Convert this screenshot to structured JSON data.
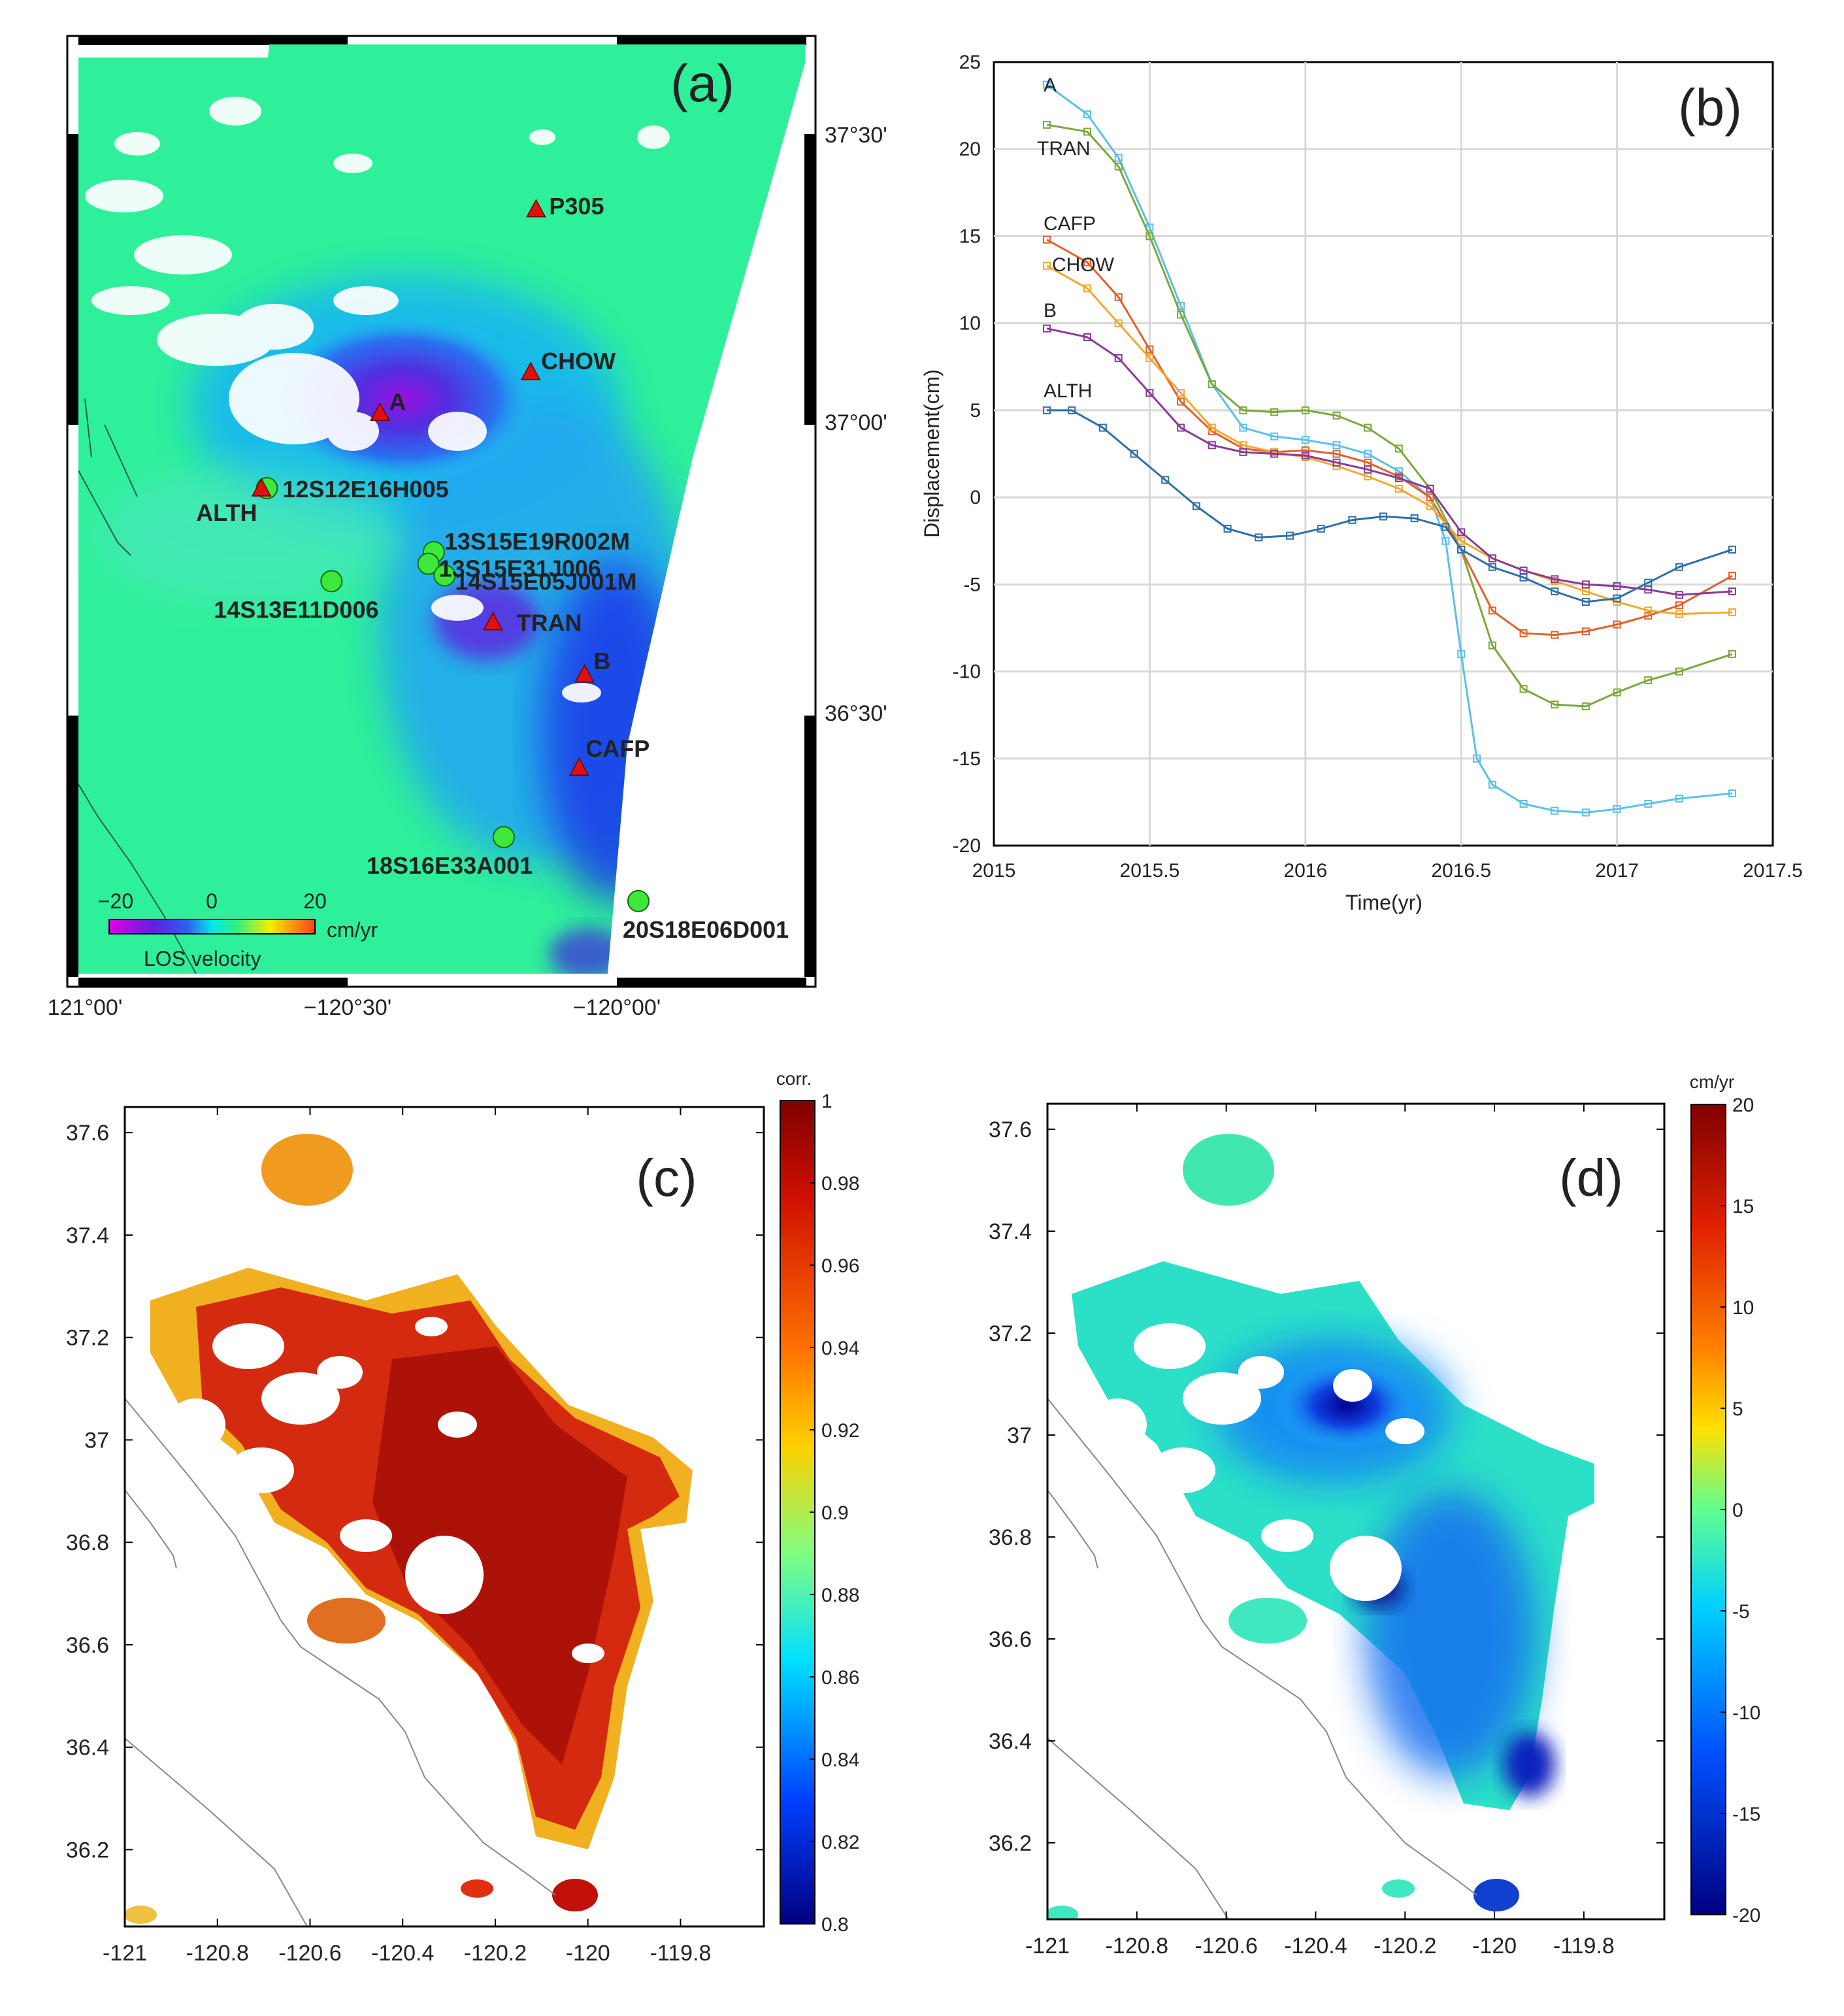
{
  "figure": {
    "panel_a": {
      "label": "(a)",
      "lat_ticks": [
        "37°30'",
        "37°00'",
        "36°30'"
      ],
      "lon_ticks": [
        "121°00'",
        "−120°30'",
        "−120°00'"
      ],
      "colorbar": {
        "ticks": [
          "−20",
          "0",
          "20"
        ],
        "unit": "cm/yr",
        "title": "LOS velocity"
      },
      "stations": [
        {
          "name": "P305",
          "lon": -120.15,
          "lat": 37.38
        },
        {
          "name": "CHOW",
          "lon": -120.16,
          "lat": 37.1
        },
        {
          "name": "A",
          "lon": -120.44,
          "lat": 37.03
        },
        {
          "name": "ALTH",
          "lon": -120.66,
          "lat": 36.9
        },
        {
          "name": "TRAN",
          "lon": -120.23,
          "lat": 36.67
        },
        {
          "name": "B",
          "lon": -120.06,
          "lat": 36.58
        },
        {
          "name": "CAFP",
          "lon": -120.07,
          "lat": 36.42
        }
      ],
      "wells": [
        {
          "name": "12S12E16H005",
          "lon": -120.65,
          "lat": 36.9
        },
        {
          "name": "13S15E19R002M",
          "lon": -120.34,
          "lat": 36.79
        },
        {
          "name": "13S15E31J006",
          "lon": -120.35,
          "lat": 36.77
        },
        {
          "name": "14S15E05J001M",
          "lon": -120.32,
          "lat": 36.75
        },
        {
          "name": "14S13E11D006",
          "lon": -120.53,
          "lat": 36.74
        },
        {
          "name": "18S16E33A001",
          "lon": -120.21,
          "lat": 36.3
        },
        {
          "name": "20S18E06D001",
          "lon": -119.96,
          "lat": 36.19
        }
      ]
    },
    "panel_b": {
      "label": "(b)",
      "annotations": [
        "A",
        "TRAN",
        "CAFP",
        "CHOW",
        "B",
        "ALTH"
      ]
    },
    "panel_c": {
      "label": "(c)",
      "colorbar_title": "corr.",
      "colorbar_ticks": [
        "1",
        "0.98",
        "0.96",
        "0.94",
        "0.92",
        "0.9",
        "0.88",
        "0.86",
        "0.84",
        "0.82",
        "0.8"
      ],
      "x_ticks": [
        "-121",
        "-120.8",
        "-120.6",
        "-120.4",
        "-120.2",
        "-120",
        "-119.8"
      ],
      "y_ticks": [
        "37.6",
        "37.4",
        "37.2",
        "37",
        "36.8",
        "36.6",
        "36.4",
        "36.2"
      ]
    },
    "panel_d": {
      "label": "(d)",
      "colorbar_title": "cm/yr",
      "colorbar_ticks": [
        "20",
        "15",
        "10",
        "5",
        "0",
        "-5",
        "-10",
        "-15",
        "-20"
      ],
      "x_ticks": [
        "-121",
        "-120.8",
        "-120.6",
        "-120.4",
        "-120.2",
        "-120",
        "-119.8"
      ],
      "y_ticks": [
        "37.6",
        "37.4",
        "37.2",
        "37",
        "36.8",
        "36.6",
        "36.4",
        "36.2"
      ]
    }
  },
  "chart_data": [
    {
      "type": "line",
      "title": "(b)",
      "xlabel": "Time(yr)",
      "ylabel": "Displacement(cm)",
      "xlim": [
        2015,
        2017.5
      ],
      "ylim": [
        -20,
        25
      ],
      "x_ticks": [
        "2015",
        "2015.5",
        "2016",
        "2016.5",
        "2017",
        "2017.5"
      ],
      "y_ticks": [
        "25",
        "20",
        "15",
        "10",
        "5",
        "0",
        "-5",
        "-10",
        "-15",
        "-20"
      ],
      "grid": true,
      "series": [
        {
          "name": "A",
          "color": "#5bc0eb",
          "x": [
            2015.17,
            2015.3,
            2015.4,
            2015.5,
            2015.6,
            2015.7,
            2015.8,
            2015.9,
            2016.0,
            2016.1,
            2016.2,
            2016.3,
            2016.4,
            2016.45,
            2016.5,
            2016.55,
            2016.6,
            2016.7,
            2016.8,
            2016.9,
            2017.0,
            2017.1,
            2017.2,
            2017.37
          ],
          "y": [
            23.7,
            22.0,
            19.5,
            15.5,
            11.0,
            6.5,
            4.0,
            3.5,
            3.3,
            3.0,
            2.5,
            1.5,
            0.0,
            -2.5,
            -9.0,
            -15.0,
            -16.5,
            -17.6,
            -18.0,
            -18.1,
            -17.9,
            -17.6,
            -17.3,
            -17.0
          ]
        },
        {
          "name": "TRAN",
          "color": "#7aa83c",
          "x": [
            2015.17,
            2015.3,
            2015.4,
            2015.5,
            2015.6,
            2015.7,
            2015.8,
            2015.9,
            2016.0,
            2016.1,
            2016.2,
            2016.3,
            2016.4,
            2016.5,
            2016.6,
            2016.7,
            2016.8,
            2016.9,
            2017.0,
            2017.1,
            2017.2,
            2017.37
          ],
          "y": [
            21.4,
            21.0,
            19.0,
            15.0,
            10.5,
            6.5,
            5.0,
            4.9,
            5.0,
            4.7,
            4.0,
            2.8,
            0.5,
            -3.0,
            -8.5,
            -11.0,
            -11.9,
            -12.0,
            -11.2,
            -10.5,
            -10.0,
            -9.0
          ]
        },
        {
          "name": "CAFP",
          "color": "#e0622a",
          "x": [
            2015.17,
            2015.3,
            2015.4,
            2015.5,
            2015.6,
            2015.7,
            2015.8,
            2015.9,
            2016.0,
            2016.1,
            2016.2,
            2016.3,
            2016.4,
            2016.5,
            2016.6,
            2016.7,
            2016.8,
            2016.9,
            2017.0,
            2017.1,
            2017.2,
            2017.37
          ],
          "y": [
            14.8,
            13.5,
            11.5,
            8.5,
            5.5,
            3.8,
            2.8,
            2.6,
            2.7,
            2.5,
            2.0,
            1.2,
            0.0,
            -3.0,
            -6.5,
            -7.8,
            -7.9,
            -7.7,
            -7.3,
            -6.8,
            -6.2,
            -4.5
          ]
        },
        {
          "name": "CHOW",
          "color": "#f0a830",
          "x": [
            2015.17,
            2015.3,
            2015.4,
            2015.5,
            2015.6,
            2015.7,
            2015.8,
            2015.9,
            2016.0,
            2016.1,
            2016.2,
            2016.3,
            2016.4,
            2016.5,
            2016.6,
            2016.7,
            2016.8,
            2016.9,
            2017.0,
            2017.1,
            2017.2,
            2017.37
          ],
          "y": [
            13.3,
            12.0,
            10.0,
            8.0,
            6.0,
            4.0,
            3.0,
            2.6,
            2.3,
            1.8,
            1.2,
            0.5,
            -0.5,
            -2.5,
            -3.5,
            -4.2,
            -4.8,
            -5.4,
            -6.0,
            -6.5,
            -6.7,
            -6.6
          ]
        },
        {
          "name": "B",
          "color": "#8a3a98",
          "x": [
            2015.17,
            2015.3,
            2015.4,
            2015.5,
            2015.6,
            2015.7,
            2015.8,
            2015.9,
            2016.0,
            2016.1,
            2016.2,
            2016.3,
            2016.4,
            2016.5,
            2016.6,
            2016.7,
            2016.8,
            2016.9,
            2017.0,
            2017.1,
            2017.2,
            2017.37
          ],
          "y": [
            9.7,
            9.2,
            8.0,
            6.0,
            4.0,
            3.0,
            2.6,
            2.5,
            2.4,
            2.0,
            1.6,
            1.1,
            0.5,
            -2.0,
            -3.5,
            -4.2,
            -4.7,
            -5.0,
            -5.1,
            -5.3,
            -5.6,
            -5.4
          ]
        },
        {
          "name": "ALTH",
          "color": "#2f6fa8",
          "x": [
            2015.17,
            2015.25,
            2015.35,
            2015.45,
            2015.55,
            2015.65,
            2015.75,
            2015.85,
            2015.95,
            2016.05,
            2016.15,
            2016.25,
            2016.35,
            2016.45,
            2016.5,
            2016.6,
            2016.7,
            2016.8,
            2016.9,
            2017.0,
            2017.1,
            2017.2,
            2017.37
          ],
          "y": [
            5.0,
            5.0,
            4.0,
            2.5,
            1.0,
            -0.5,
            -1.8,
            -2.3,
            -2.2,
            -1.8,
            -1.3,
            -1.1,
            -1.2,
            -1.7,
            -3.0,
            -4.0,
            -4.6,
            -5.4,
            -6.0,
            -5.8,
            -4.9,
            -4.0,
            -3.0
          ]
        }
      ]
    }
  ]
}
